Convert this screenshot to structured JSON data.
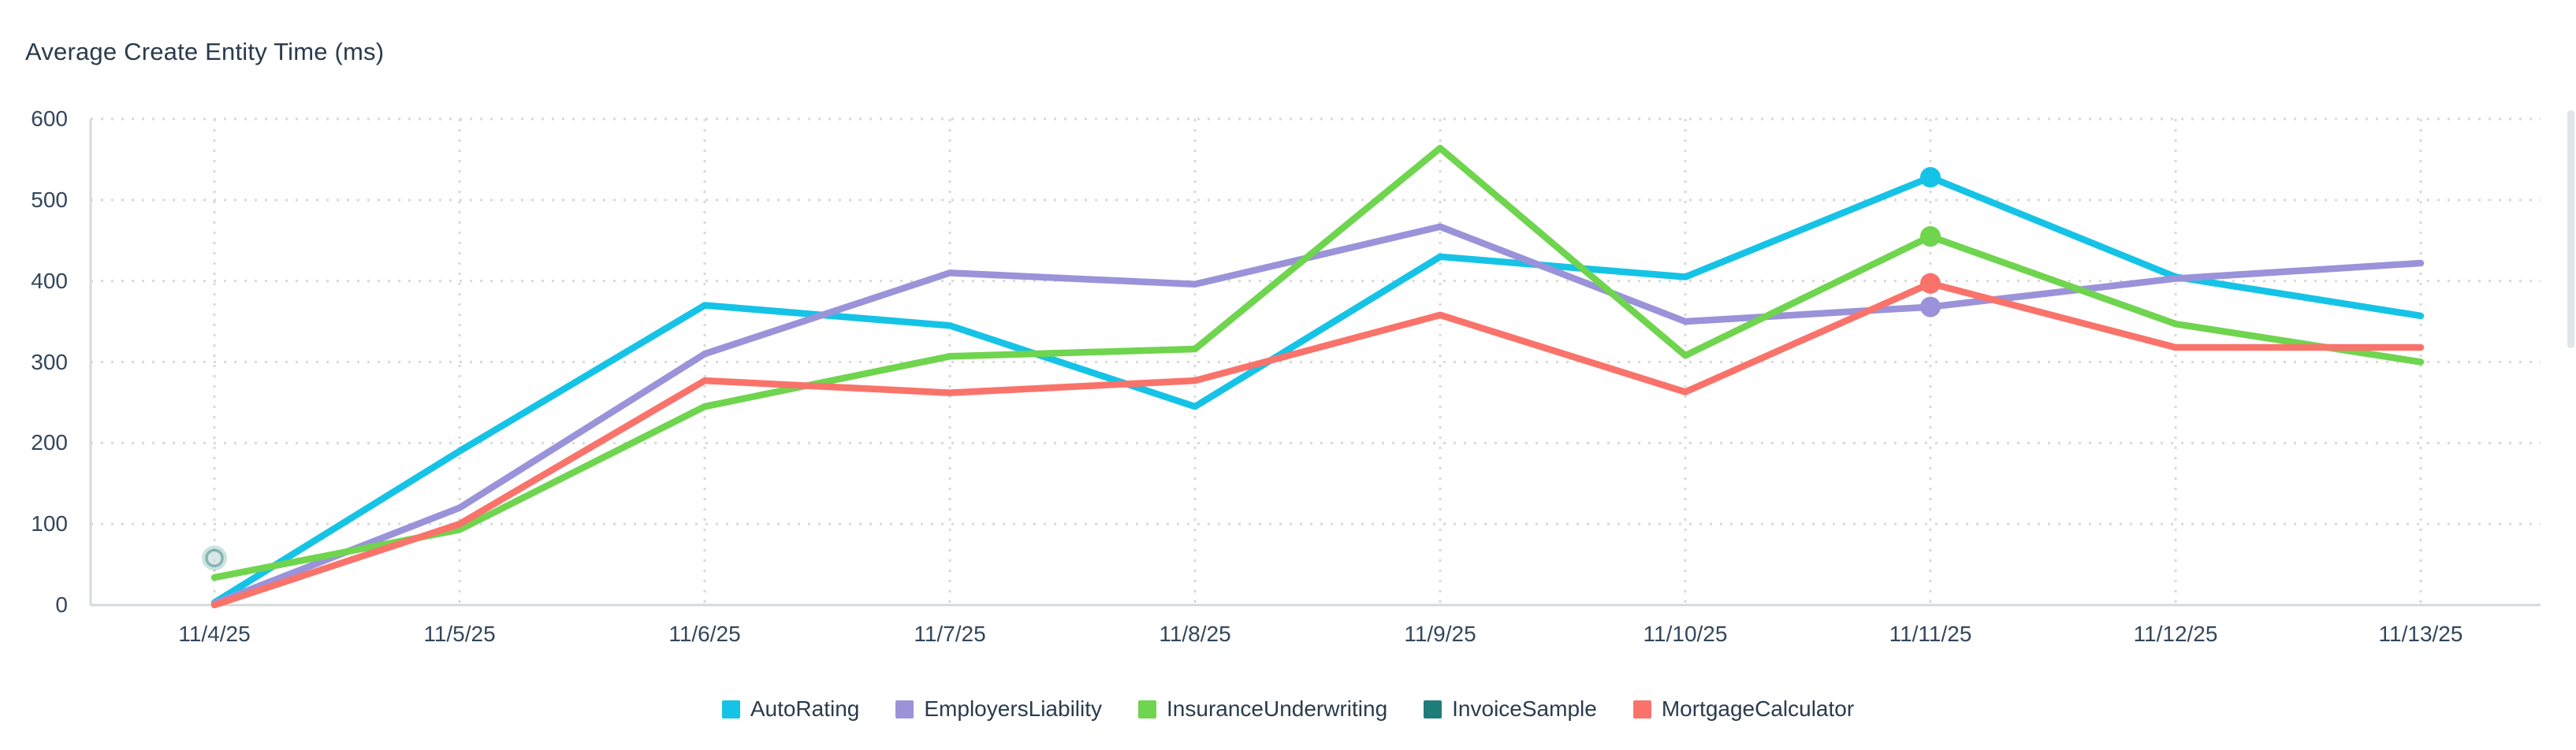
{
  "page": {
    "background": "#ffffff"
  },
  "chart_data": {
    "type": "line",
    "title": "Average Create Entity Time (ms)",
    "categories": [
      "11/4/25",
      "11/5/25",
      "11/6/25",
      "11/7/25",
      "11/8/25",
      "11/9/25",
      "11/10/25",
      "11/11/25",
      "11/12/25",
      "11/13/25"
    ],
    "series": [
      {
        "name": "AutoRating",
        "color": "#15c3e6",
        "values": [
          3,
          190,
          370,
          345,
          245,
          430,
          405,
          528,
          405,
          357
        ]
      },
      {
        "name": "EmployersLiability",
        "color": "#9a93d9",
        "values": [
          2,
          120,
          310,
          410,
          396,
          467,
          350,
          368,
          403,
          422
        ]
      },
      {
        "name": "InsuranceUnderwriting",
        "color": "#6fd44e",
        "values": [
          34,
          93,
          245,
          307,
          316,
          564,
          308,
          455,
          347,
          300
        ]
      },
      {
        "name": "InvoiceSample",
        "color": "#1e7d78",
        "values": [
          58,
          null,
          null,
          null,
          null,
          null,
          null,
          null,
          null,
          null
        ]
      },
      {
        "name": "MortgageCalculator",
        "color": "#f9736b",
        "values": [
          0,
          100,
          277,
          262,
          277,
          358,
          263,
          397,
          318,
          318
        ]
      }
    ],
    "ylim": [
      0,
      600
    ],
    "y_tick_step": 100,
    "y_tick_labels": [
      "0",
      "100",
      "200",
      "300",
      "400",
      "500",
      "600"
    ],
    "xlabel": "",
    "ylabel": "",
    "grid": "dotted horizontal and vertical gridlines",
    "legend_position": "bottom-center",
    "emphasized_category": "11/11/25",
    "single_point_highlight": {
      "series": "InvoiceSample",
      "category": "11/4/25",
      "value": 58
    }
  },
  "colors": {
    "title_text": "#2a3b4d",
    "axis_text": "#33465c",
    "gridline": "#d9d9d9",
    "axis_line": "#d6d9dc"
  },
  "scrollbar": {
    "visible": true
  }
}
